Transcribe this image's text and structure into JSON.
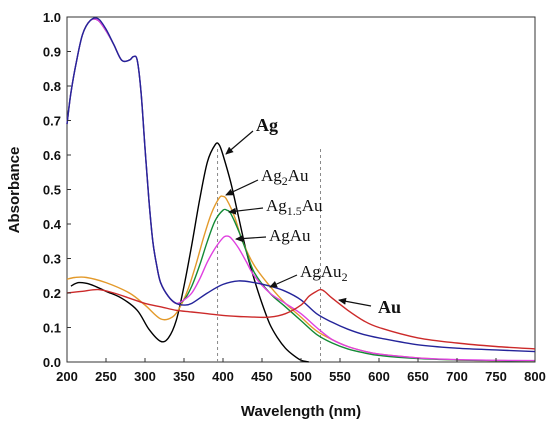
{
  "chart_data": {
    "type": "line",
    "xlabel": "Wavelength (nm)",
    "ylabel": "Absorbance",
    "xlim": [
      200,
      800
    ],
    "ylim": [
      0.0,
      1.0
    ],
    "x_ticks": [
      200,
      250,
      300,
      350,
      400,
      450,
      500,
      550,
      600,
      650,
      700,
      750,
      800
    ],
    "y_ticks": [
      0.0,
      0.1,
      0.2,
      0.3,
      0.4,
      0.5,
      0.6,
      0.7,
      0.8,
      0.9,
      1.0
    ],
    "x_tick_labels": [
      "200",
      "250",
      "300",
      "350",
      "400",
      "450",
      "500",
      "550",
      "600",
      "650",
      "700",
      "750",
      "800"
    ],
    "y_tick_labels": [
      "0.0",
      "0.1",
      "0.2",
      "0.3",
      "0.4",
      "0.5",
      "0.6",
      "0.7",
      "0.8",
      "0.9",
      "1.0"
    ],
    "grid": false,
    "reference_lines": [
      {
        "x": 393
      },
      {
        "x": 525
      }
    ],
    "series": [
      {
        "name": "Ag",
        "color": "#000000",
        "x": [
          205,
          215,
          230,
          250,
          270,
          290,
          305,
          320,
          330,
          340,
          350,
          360,
          370,
          380,
          390,
          395,
          400,
          410,
          420,
          430,
          440,
          450,
          460,
          470,
          480,
          490,
          500,
          510
        ],
        "y": [
          0.22,
          0.23,
          0.225,
          0.205,
          0.185,
          0.15,
          0.095,
          0.06,
          0.07,
          0.12,
          0.22,
          0.34,
          0.47,
          0.58,
          0.63,
          0.63,
          0.6,
          0.52,
          0.42,
          0.32,
          0.24,
          0.17,
          0.11,
          0.07,
          0.04,
          0.02,
          0.005,
          0.0
        ]
      },
      {
        "name": "Ag2Au",
        "color": "#e39a2b",
        "x": [
          200,
          210,
          225,
          250,
          280,
          300,
          320,
          335,
          345,
          355,
          365,
          375,
          385,
          395,
          400,
          405,
          415,
          425,
          440,
          460,
          480,
          500,
          520,
          540,
          560,
          580,
          600,
          650,
          700,
          750,
          800
        ],
        "y": [
          0.24,
          0.245,
          0.245,
          0.23,
          0.2,
          0.165,
          0.125,
          0.13,
          0.16,
          0.21,
          0.28,
          0.36,
          0.43,
          0.475,
          0.48,
          0.47,
          0.42,
          0.35,
          0.28,
          0.22,
          0.17,
          0.13,
          0.09,
          0.065,
          0.045,
          0.032,
          0.023,
          0.012,
          0.006,
          0.004,
          0.003
        ]
      },
      {
        "name": "Ag1.5Au",
        "color": "#138a36",
        "x": [
          200,
          205,
          212,
          220,
          230,
          240,
          250,
          260,
          270,
          280,
          285,
          290,
          295,
          300,
          305,
          310,
          315,
          320,
          330,
          340,
          350,
          360,
          370,
          380,
          390,
          400,
          405,
          410,
          420,
          430,
          440,
          460,
          480,
          500,
          520,
          540,
          560,
          580,
          600,
          650,
          700,
          750,
          800
        ],
        "y": [
          0.69,
          0.78,
          0.87,
          0.95,
          0.99,
          0.99,
          0.96,
          0.92,
          0.875,
          0.875,
          0.885,
          0.875,
          0.78,
          0.62,
          0.47,
          0.35,
          0.28,
          0.23,
          0.19,
          0.17,
          0.18,
          0.22,
          0.28,
          0.35,
          0.41,
          0.44,
          0.44,
          0.43,
          0.38,
          0.32,
          0.26,
          0.2,
          0.16,
          0.12,
          0.08,
          0.055,
          0.038,
          0.027,
          0.019,
          0.01,
          0.006,
          0.004,
          0.003
        ]
      },
      {
        "name": "AgAu",
        "color": "#e040e0",
        "x": [
          200,
          205,
          212,
          220,
          230,
          240,
          250,
          260,
          270,
          280,
          285,
          290,
          295,
          300,
          305,
          310,
          315,
          320,
          330,
          340,
          350,
          360,
          370,
          380,
          390,
          400,
          405,
          410,
          420,
          430,
          440,
          460,
          480,
          500,
          520,
          540,
          560,
          580,
          600,
          650,
          700,
          750,
          800
        ],
        "y": [
          0.69,
          0.78,
          0.87,
          0.95,
          0.99,
          0.99,
          0.96,
          0.92,
          0.875,
          0.875,
          0.885,
          0.875,
          0.78,
          0.62,
          0.47,
          0.35,
          0.28,
          0.23,
          0.19,
          0.17,
          0.18,
          0.2,
          0.24,
          0.29,
          0.33,
          0.36,
          0.365,
          0.36,
          0.33,
          0.29,
          0.25,
          0.2,
          0.17,
          0.14,
          0.1,
          0.065,
          0.045,
          0.032,
          0.023,
          0.012,
          0.007,
          0.005,
          0.004
        ]
      },
      {
        "name": "AgAu2",
        "color": "#24249a",
        "x": [
          200,
          205,
          212,
          220,
          230,
          240,
          250,
          260,
          270,
          280,
          285,
          290,
          295,
          300,
          305,
          310,
          315,
          320,
          330,
          340,
          350,
          360,
          380,
          400,
          420,
          440,
          460,
          480,
          500,
          520,
          540,
          560,
          580,
          600,
          650,
          700,
          750,
          800
        ],
        "y": [
          0.69,
          0.78,
          0.87,
          0.95,
          0.99,
          0.995,
          0.965,
          0.92,
          0.875,
          0.875,
          0.885,
          0.875,
          0.78,
          0.62,
          0.47,
          0.35,
          0.28,
          0.23,
          0.19,
          0.17,
          0.165,
          0.17,
          0.2,
          0.225,
          0.235,
          0.23,
          0.22,
          0.205,
          0.18,
          0.14,
          0.115,
          0.095,
          0.08,
          0.07,
          0.05,
          0.04,
          0.035,
          0.03
        ]
      },
      {
        "name": "Au",
        "color": "#cc2a2a",
        "x": [
          200,
          220,
          240,
          260,
          280,
          300,
          320,
          340,
          360,
          380,
          400,
          420,
          440,
          460,
          480,
          500,
          510,
          520,
          525,
          530,
          540,
          560,
          580,
          600,
          650,
          700,
          750,
          800
        ],
        "y": [
          0.2,
          0.205,
          0.21,
          0.2,
          0.185,
          0.17,
          0.16,
          0.15,
          0.145,
          0.14,
          0.135,
          0.132,
          0.13,
          0.13,
          0.14,
          0.165,
          0.19,
          0.205,
          0.21,
          0.205,
          0.185,
          0.15,
          0.12,
          0.1,
          0.07,
          0.055,
          0.045,
          0.038
        ]
      }
    ],
    "annotations": [
      {
        "text": "Ag",
        "series": "Ag"
      },
      {
        "text": "Ag2Au",
        "series": "Ag2Au"
      },
      {
        "text": "Ag1.5Au",
        "series": "Ag1.5Au"
      },
      {
        "text": "AgAu",
        "series": "AgAu"
      },
      {
        "text": "AgAu2",
        "series": "AgAu2"
      },
      {
        "text": "Au",
        "series": "Au"
      }
    ]
  },
  "labels": {
    "ag": {
      "base": "Ag"
    },
    "ag2au": {
      "base": "Ag",
      "sub": "2",
      "tail": "Au"
    },
    "ag15au": {
      "base": "Ag",
      "sub": "1.5",
      "tail": "Au"
    },
    "agau": {
      "base": "AgAu"
    },
    "agau2": {
      "base": "AgAu",
      "sub": "2"
    },
    "au": {
      "base": "Au"
    }
  }
}
